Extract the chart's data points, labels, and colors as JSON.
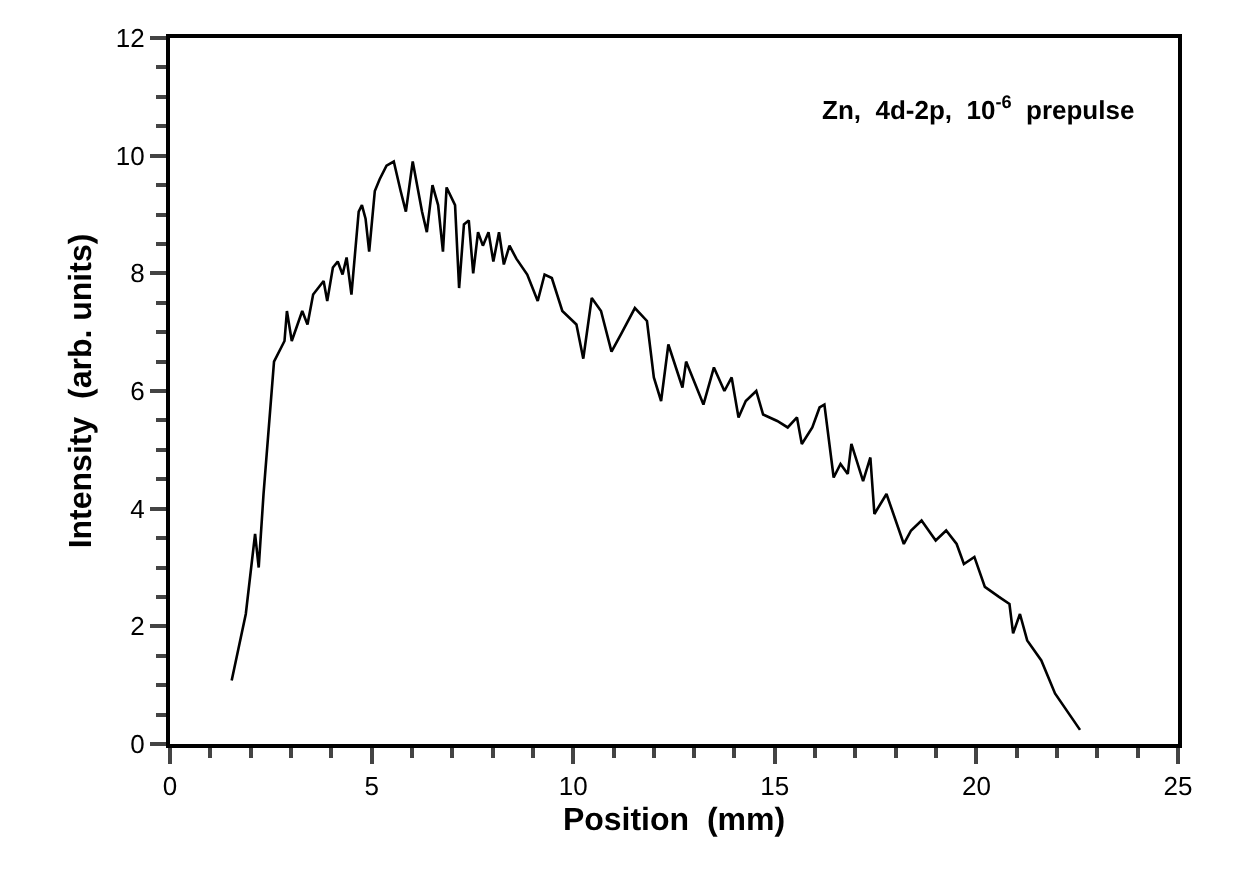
{
  "chart_data": {
    "type": "line",
    "xlabel": "Position  (mm)",
    "ylabel": "Intensity  (arb. units)",
    "annotations": [
      "Zn,  4d-2p,  10$^{-6}$  prepulse"
    ],
    "xlim": [
      0,
      25
    ],
    "xticks": [
      0,
      5,
      10,
      15,
      20,
      25
    ],
    "ylim": [
      0,
      12
    ],
    "yticks": [
      0,
      2,
      4,
      6,
      8,
      10,
      12
    ],
    "marker": "none",
    "line_style": "solid",
    "series": [
      {
        "color": "#000000",
        "x": [
          1.53,
          1.88,
          2.11,
          2.2,
          2.32,
          2.58,
          2.84,
          2.9,
          3.02,
          3.28,
          3.41,
          3.55,
          3.81,
          3.9,
          4.04,
          4.16,
          4.28,
          4.38,
          4.5,
          4.68,
          4.76,
          4.85,
          4.94,
          5.08,
          5.2,
          5.37,
          5.55,
          5.72,
          5.85,
          6.02,
          6.25,
          6.37,
          6.51,
          6.65,
          6.77,
          6.86,
          7.07,
          7.17,
          7.29,
          7.41,
          7.52,
          7.64,
          7.76,
          7.9,
          8.02,
          8.16,
          8.28,
          8.42,
          8.59,
          8.86,
          9.12,
          9.29,
          9.47,
          9.73,
          9.99,
          10.08,
          10.25,
          10.46,
          10.69,
          10.95,
          11.18,
          11.53,
          11.83,
          12.0,
          12.18,
          12.36,
          12.71,
          12.8,
          13.23,
          13.49,
          13.75,
          13.93,
          14.1,
          14.28,
          14.54,
          14.71,
          15.06,
          15.32,
          15.55,
          15.67,
          15.93,
          16.11,
          16.23,
          16.46,
          16.63,
          16.81,
          16.9,
          17.19,
          17.37,
          17.47,
          17.77,
          18.2,
          18.38,
          18.64,
          18.99,
          19.25,
          19.51,
          19.69,
          19.95,
          20.21,
          20.56,
          20.82,
          20.91,
          21.08,
          21.26,
          21.61,
          21.95,
          22.57
        ],
        "values": [
          1.08,
          2.21,
          3.57,
          3.0,
          4.25,
          6.5,
          6.85,
          7.36,
          6.85,
          7.36,
          7.13,
          7.64,
          7.87,
          7.53,
          8.1,
          8.2,
          7.98,
          8.27,
          7.64,
          9.05,
          9.16,
          8.93,
          8.37,
          9.4,
          9.6,
          9.83,
          9.9,
          9.4,
          9.05,
          9.9,
          9.05,
          8.7,
          9.5,
          9.16,
          8.37,
          9.46,
          9.16,
          7.75,
          8.83,
          8.9,
          8.0,
          8.7,
          8.47,
          8.7,
          8.2,
          8.7,
          8.15,
          8.47,
          8.25,
          7.98,
          7.53,
          7.98,
          7.92,
          7.36,
          7.19,
          7.13,
          6.55,
          7.58,
          7.36,
          6.67,
          6.96,
          7.41,
          7.19,
          6.23,
          5.83,
          6.79,
          6.06,
          6.5,
          5.77,
          6.4,
          6.0,
          6.23,
          5.55,
          5.83,
          6.0,
          5.6,
          5.49,
          5.38,
          5.55,
          5.1,
          5.38,
          5.72,
          5.77,
          4.53,
          4.76,
          4.59,
          5.1,
          4.47,
          4.87,
          3.91,
          4.25,
          3.4,
          3.63,
          3.8,
          3.46,
          3.63,
          3.4,
          3.06,
          3.18,
          2.67,
          2.5,
          2.38,
          1.88,
          2.21,
          1.76,
          1.42,
          0.86,
          0.24
        ]
      }
    ]
  }
}
